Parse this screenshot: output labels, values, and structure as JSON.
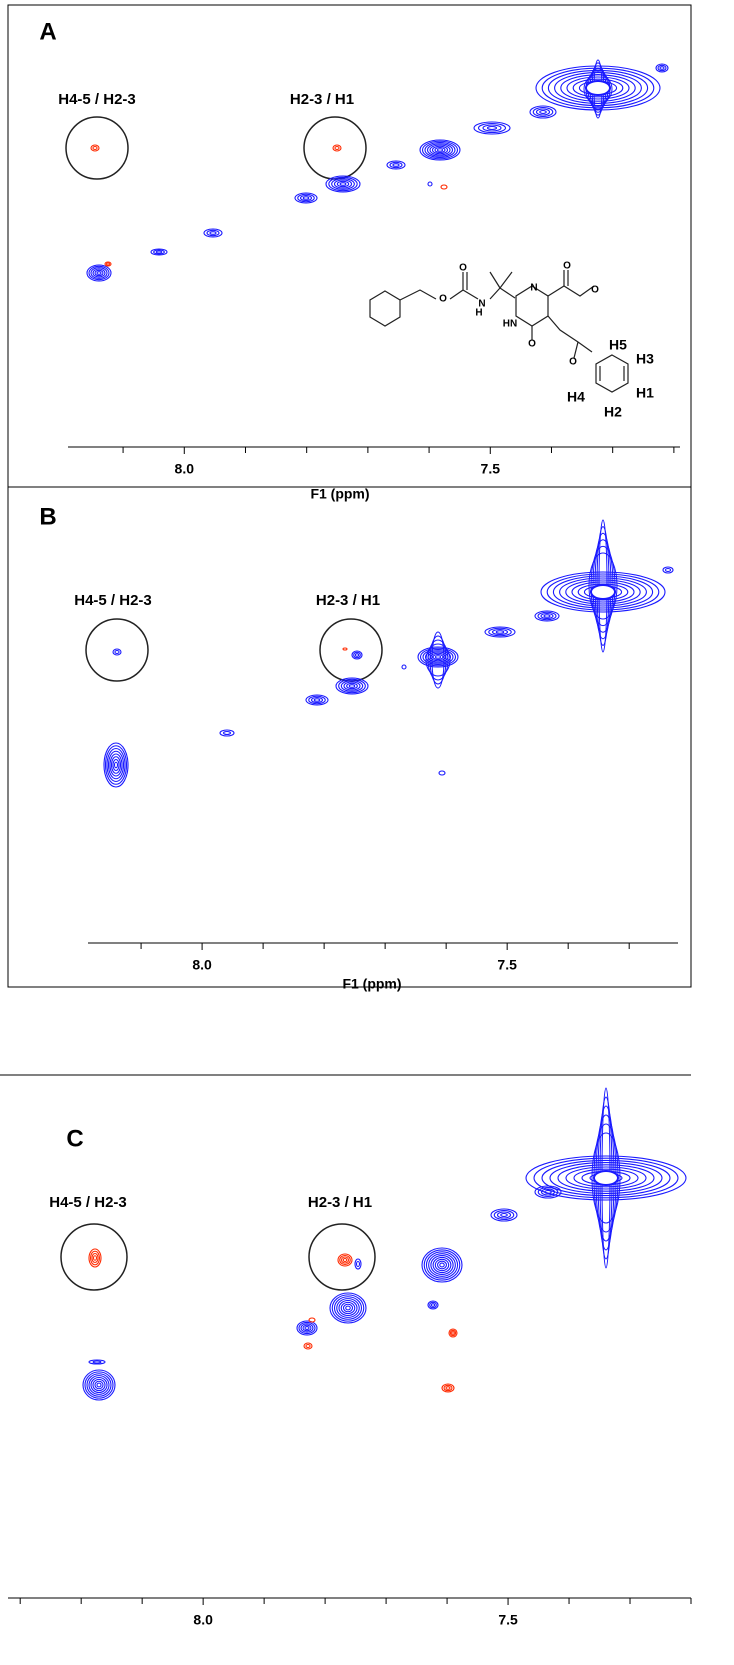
{
  "chart_data": [
    {
      "type": "contour",
      "panel_label": "A",
      "annotations": [
        "H4-5 / H2-3",
        "H2-3 / H1"
      ],
      "xlabel": "F1 (ppm)",
      "xlim": [
        8.19,
        7.19
      ],
      "xticks": [
        {
          "value": 8,
          "label": "8.0"
        },
        {
          "value": 7.5,
          "label": "7.5"
        }
      ],
      "xminorticks": [
        8.1,
        7.9,
        7.8,
        7.7,
        7.6,
        7.4,
        7.3,
        7.2
      ],
      "structure_labels": [
        "O",
        "O",
        "N",
        "H",
        "N",
        "HN",
        "O",
        "O",
        "O",
        "O",
        "H5",
        "H3",
        "H1",
        "H2",
        "H4"
      ]
    },
    {
      "type": "contour",
      "panel_label": "B",
      "annotations": [
        "H4-5 / H2-3",
        "H2-3 / H1"
      ],
      "xlabel": "F1 (ppm)",
      "xlim": [
        8.187,
        7.22
      ],
      "xticks": [
        {
          "value": 8,
          "label": "8.0"
        },
        {
          "value": 7.5,
          "label": "7.5"
        }
      ],
      "xminorticks": [
        8.1,
        7.9,
        7.8,
        7.7,
        7.6,
        7.4,
        7.3
      ]
    },
    {
      "type": "contour",
      "panel_label": "C",
      "annotations": [
        "H4-5 / H2-3",
        "H2-3 / H1"
      ],
      "xlim": [
        8.32,
        7.2
      ],
      "xticks": [
        {
          "value": 8,
          "label": "8.0"
        },
        {
          "value": 7.5,
          "label": "7.5"
        }
      ],
      "xminorticks": [
        8.3,
        8.2,
        8.1,
        7.9,
        7.8,
        7.7,
        7.6,
        7.4,
        7.3,
        7.2
      ]
    }
  ]
}
